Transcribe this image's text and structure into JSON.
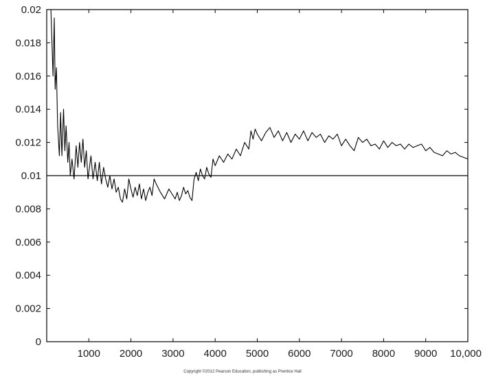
{
  "copyright": "Copyright ©2012 Pearson Education, publishing as Prentice Hall",
  "chart_data": {
    "type": "line",
    "title": "",
    "xlabel": "",
    "ylabel": "",
    "xlim": [
      0,
      10000
    ],
    "ylim": [
      0,
      0.02
    ],
    "grid": false,
    "x_ticks": [
      1000,
      2000,
      3000,
      4000,
      5000,
      6000,
      7000,
      8000,
      9000,
      10000
    ],
    "x_tick_labels": [
      "1000",
      "2000",
      "3000",
      "4000",
      "5000",
      "6000",
      "7000",
      "8000",
      "9000",
      "10,000"
    ],
    "y_ticks": [
      0,
      0.002,
      0.004,
      0.006,
      0.008,
      0.01,
      0.012,
      0.014,
      0.016,
      0.018,
      0.02
    ],
    "y_tick_labels": [
      "0",
      "0.002",
      "0.004",
      "0.006",
      "0.008",
      "0.01",
      "0.012",
      "0.014",
      "0.016",
      "0.018",
      "0.02"
    ],
    "reference_line": {
      "y": 0.01
    },
    "series": [
      {
        "x": [
          100,
          150,
          180,
          200,
          230,
          260,
          300,
          330,
          360,
          400,
          430,
          460,
          500,
          530,
          560,
          600,
          650,
          700,
          740,
          780,
          820,
          860,
          900,
          940,
          980,
          1050,
          1100,
          1150,
          1200,
          1250,
          1300,
          1350,
          1400,
          1450,
          1500,
          1550,
          1600,
          1650,
          1700,
          1750,
          1800,
          1850,
          1900,
          1950,
          2000,
          2050,
          2100,
          2150,
          2200,
          2250,
          2300,
          2350,
          2400,
          2450,
          2500,
          2550,
          2600,
          2700,
          2800,
          2900,
          3000,
          3050,
          3100,
          3150,
          3200,
          3250,
          3300,
          3350,
          3400,
          3450,
          3500,
          3550,
          3600,
          3650,
          3700,
          3750,
          3800,
          3850,
          3900,
          3950,
          4000,
          4100,
          4200,
          4300,
          4400,
          4500,
          4600,
          4700,
          4800,
          4850,
          4900,
          4950,
          5000,
          5100,
          5200,
          5300,
          5400,
          5500,
          5600,
          5700,
          5800,
          5900,
          6000,
          6100,
          6200,
          6300,
          6400,
          6500,
          6600,
          6700,
          6800,
          6900,
          7000,
          7100,
          7200,
          7300,
          7400,
          7500,
          7600,
          7700,
          7800,
          7900,
          8000,
          8100,
          8200,
          8300,
          8400,
          8500,
          8600,
          8700,
          8800,
          8900,
          9000,
          9100,
          9200,
          9300,
          9400,
          9500,
          9600,
          9700,
          9800,
          9900,
          10000
        ],
        "y": [
          0.02,
          0.016,
          0.0195,
          0.0152,
          0.0165,
          0.013,
          0.0112,
          0.0138,
          0.0112,
          0.014,
          0.0115,
          0.013,
          0.0108,
          0.012,
          0.01,
          0.011,
          0.0098,
          0.0118,
          0.0105,
          0.012,
          0.0108,
          0.0122,
          0.0105,
          0.0115,
          0.0098,
          0.0112,
          0.0098,
          0.0108,
          0.0097,
          0.0108,
          0.0095,
          0.0105,
          0.0098,
          0.0093,
          0.01,
          0.0092,
          0.0098,
          0.009,
          0.0093,
          0.0086,
          0.0084,
          0.0092,
          0.0086,
          0.0098,
          0.0092,
          0.0087,
          0.0093,
          0.0088,
          0.0095,
          0.0086,
          0.0092,
          0.0085,
          0.009,
          0.0093,
          0.0088,
          0.0098,
          0.0095,
          0.009,
          0.0086,
          0.0092,
          0.0088,
          0.0086,
          0.009,
          0.0085,
          0.0088,
          0.0093,
          0.0089,
          0.0091,
          0.0087,
          0.0085,
          0.0098,
          0.0102,
          0.0097,
          0.0104,
          0.01,
          0.0098,
          0.0105,
          0.0101,
          0.0099,
          0.011,
          0.0106,
          0.0112,
          0.0108,
          0.0113,
          0.011,
          0.0116,
          0.0112,
          0.012,
          0.0116,
          0.0127,
          0.0122,
          0.0128,
          0.0125,
          0.0121,
          0.0126,
          0.0129,
          0.0123,
          0.0127,
          0.0121,
          0.0126,
          0.012,
          0.0125,
          0.0122,
          0.0127,
          0.0121,
          0.0126,
          0.0123,
          0.0125,
          0.012,
          0.0124,
          0.0122,
          0.0125,
          0.0118,
          0.0122,
          0.0118,
          0.0115,
          0.0123,
          0.012,
          0.0122,
          0.0118,
          0.0119,
          0.0116,
          0.0121,
          0.0117,
          0.012,
          0.0118,
          0.0119,
          0.0116,
          0.0119,
          0.0117,
          0.0118,
          0.0119,
          0.0115,
          0.0117,
          0.0114,
          0.0113,
          0.0112,
          0.0115,
          0.0113,
          0.0114,
          0.0112,
          0.0111,
          0.011
        ]
      }
    ]
  }
}
